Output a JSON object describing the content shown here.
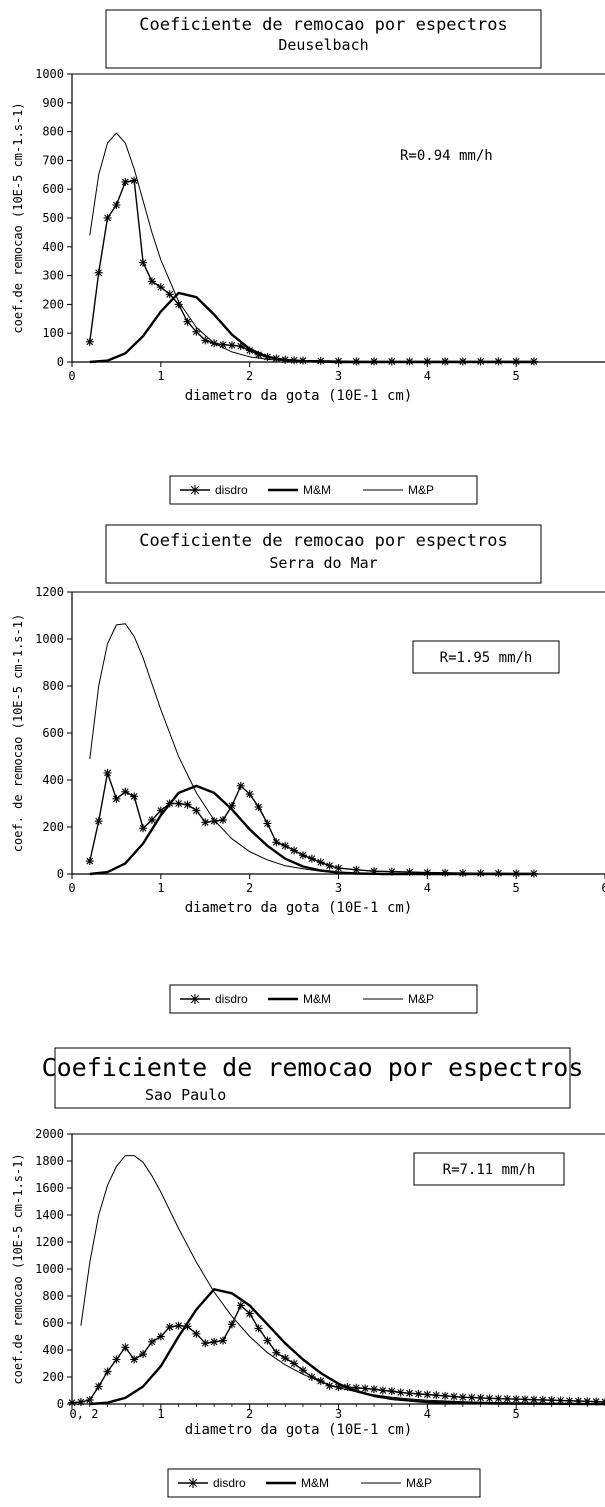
{
  "chart_data": [
    {
      "type": "line",
      "title": "Coeficiente de remocao por espectros",
      "subtitle": "Deuselbach",
      "xlabel": "diametro da gota (10E-1 cm)",
      "ylabel": "coef.de remocao (10E-5 cm-1.s-1)",
      "xlim": [
        0,
        6
      ],
      "ylim": [
        0,
        1000
      ],
      "xticks": [
        "0",
        "1",
        "2",
        "3",
        "4",
        "5"
      ],
      "yticks": [
        "0",
        "100",
        "200",
        "300",
        "400",
        "500",
        "600",
        "700",
        "800",
        "900",
        "1000"
      ],
      "annotation": "R=0.94 mm/h",
      "annotation_boxed": false,
      "legend": [
        "disdro",
        "M&M",
        "M&P"
      ],
      "series": [
        {
          "name": "disdro",
          "x": [
            0.2,
            0.3,
            0.4,
            0.5,
            0.6,
            0.7,
            0.8,
            0.9,
            1.0,
            1.1,
            1.2,
            1.3,
            1.4,
            1.5,
            1.6,
            1.7,
            1.8,
            1.9,
            2.0,
            2.1,
            2.2,
            2.3,
            2.4,
            2.5,
            2.6,
            2.8,
            3.0,
            3.2,
            3.4,
            3.6,
            3.8,
            4.0,
            4.2,
            4.4,
            4.6,
            4.8,
            5.0,
            5.2
          ],
          "y": [
            70,
            310,
            500,
            545,
            625,
            630,
            345,
            280,
            260,
            235,
            200,
            140,
            105,
            75,
            65,
            60,
            58,
            55,
            40,
            25,
            18,
            12,
            8,
            6,
            5,
            4,
            3,
            2,
            2,
            2,
            2,
            2,
            2,
            2,
            2,
            2,
            2,
            2
          ]
        },
        {
          "name": "M&M",
          "x": [
            0.2,
            0.4,
            0.6,
            0.8,
            1.0,
            1.2,
            1.4,
            1.6,
            1.8,
            2.0,
            2.2,
            2.4,
            2.6,
            2.8,
            3.0,
            3.5,
            4.0,
            4.5,
            5.0,
            5.2
          ],
          "y": [
            0,
            5,
            30,
            90,
            175,
            240,
            225,
            165,
            95,
            45,
            18,
            7,
            3,
            1,
            0,
            0,
            0,
            0,
            0,
            0
          ]
        },
        {
          "name": "M&P",
          "x": [
            0.2,
            0.3,
            0.4,
            0.5,
            0.6,
            0.7,
            0.8,
            0.9,
            1.0,
            1.2,
            1.4,
            1.6,
            1.8,
            2.0,
            2.2,
            2.4,
            2.6,
            2.8,
            3.0,
            3.5,
            4.0,
            4.5,
            5.0,
            5.2
          ],
          "y": [
            440,
            650,
            760,
            795,
            760,
            670,
            560,
            450,
            355,
            210,
            120,
            65,
            35,
            18,
            9,
            5,
            3,
            2,
            1,
            0,
            0,
            0,
            0,
            0
          ]
        }
      ]
    },
    {
      "type": "line",
      "title": "Coeficiente de remocao por espectros",
      "subtitle": "Serra do Mar",
      "xlabel": "diametro da gota (10E-1 cm)",
      "ylabel": "coef. de remocao (10E-5 cm-1.s-1)",
      "xlim": [
        0,
        6
      ],
      "ylim": [
        0,
        1200
      ],
      "xticks": [
        "0",
        "1",
        "2",
        "3",
        "4",
        "5",
        "6"
      ],
      "yticks": [
        "0",
        "200",
        "400",
        "600",
        "800",
        "1000",
        "1200"
      ],
      "annotation": "R=1.95 mm/h",
      "annotation_boxed": true,
      "legend": [
        "disdro",
        "M&M",
        "M&P"
      ],
      "series": [
        {
          "name": "disdro",
          "x": [
            0.2,
            0.3,
            0.4,
            0.5,
            0.6,
            0.7,
            0.8,
            0.9,
            1.0,
            1.1,
            1.2,
            1.3,
            1.4,
            1.5,
            1.6,
            1.7,
            1.8,
            1.9,
            2.0,
            2.1,
            2.2,
            2.3,
            2.4,
            2.5,
            2.6,
            2.7,
            2.8,
            2.9,
            3.0,
            3.2,
            3.4,
            3.6,
            3.8,
            4.0,
            4.2,
            4.4,
            4.6,
            4.8,
            5.0,
            5.2
          ],
          "y": [
            55,
            225,
            430,
            320,
            350,
            330,
            195,
            230,
            270,
            300,
            300,
            295,
            270,
            220,
            225,
            230,
            290,
            375,
            340,
            285,
            215,
            135,
            120,
            100,
            80,
            65,
            50,
            35,
            25,
            18,
            12,
            10,
            8,
            6,
            5,
            4,
            3,
            3,
            2,
            2
          ]
        },
        {
          "name": "M&M",
          "x": [
            0.2,
            0.4,
            0.6,
            0.8,
            1.0,
            1.2,
            1.4,
            1.6,
            1.8,
            2.0,
            2.2,
            2.4,
            2.6,
            2.8,
            3.0,
            3.2,
            3.5,
            4.0,
            4.5,
            5.0,
            5.2
          ],
          "y": [
            0,
            8,
            45,
            130,
            250,
            345,
            375,
            345,
            275,
            190,
            120,
            65,
            32,
            15,
            6,
            2,
            0,
            0,
            0,
            0,
            0
          ]
        },
        {
          "name": "M&P",
          "x": [
            0.2,
            0.3,
            0.4,
            0.5,
            0.6,
            0.7,
            0.8,
            0.9,
            1.0,
            1.2,
            1.4,
            1.6,
            1.8,
            2.0,
            2.2,
            2.4,
            2.6,
            2.8,
            3.0,
            3.5,
            4.0,
            4.5,
            5.0,
            5.2
          ],
          "y": [
            490,
            800,
            980,
            1060,
            1065,
            1010,
            920,
            810,
            700,
            500,
            345,
            230,
            150,
            95,
            60,
            35,
            22,
            12,
            6,
            2,
            0,
            0,
            0,
            0
          ]
        }
      ]
    },
    {
      "type": "line",
      "title": "Coeficiente de remocao por espectros",
      "subtitle": "Sao Paulo",
      "xlabel": "diametro da gota (10E-1 cm)",
      "ylabel": "coef.de remocao (10E-5 cm-1.s-1)",
      "xlim": [
        0,
        6
      ],
      "ylim": [
        0,
        2000
      ],
      "xticks": [
        "0, 2",
        "1",
        "2",
        "3",
        "4",
        "5"
      ],
      "yticks": [
        "0",
        "200",
        "400",
        "600",
        "800",
        "1000",
        "1200",
        "1400",
        "1600",
        "1800",
        "2000"
      ],
      "annotation": "R=7.11 mm/h",
      "annotation_boxed": true,
      "legend": [
        "disdro",
        "M&M",
        "M&P"
      ],
      "series": [
        {
          "name": "disdro",
          "x": [
            0.0,
            0.1,
            0.2,
            0.3,
            0.4,
            0.5,
            0.6,
            0.7,
            0.8,
            0.9,
            1.0,
            1.1,
            1.2,
            1.3,
            1.4,
            1.5,
            1.6,
            1.7,
            1.8,
            1.9,
            2.0,
            2.1,
            2.2,
            2.3,
            2.4,
            2.5,
            2.6,
            2.7,
            2.8,
            2.9,
            3.0,
            3.1,
            3.2,
            3.3,
            3.4,
            3.5,
            3.6,
            3.7,
            3.8,
            3.9,
            4.0,
            4.1,
            4.2,
            4.3,
            4.4,
            4.5,
            4.6,
            4.7,
            4.8,
            4.9,
            5.0,
            5.1,
            5.2,
            5.3,
            5.4,
            5.5,
            5.6,
            5.7,
            5.8,
            5.9,
            6.0
          ],
          "y": [
            10,
            15,
            30,
            130,
            240,
            330,
            420,
            330,
            370,
            460,
            500,
            570,
            580,
            575,
            520,
            450,
            460,
            470,
            590,
            730,
            670,
            560,
            470,
            380,
            340,
            300,
            250,
            200,
            170,
            135,
            125,
            125,
            120,
            115,
            110,
            100,
            95,
            85,
            80,
            75,
            70,
            65,
            60,
            55,
            50,
            48,
            45,
            42,
            40,
            38,
            36,
            34,
            32,
            30,
            28,
            26,
            24,
            22,
            20,
            18,
            16
          ]
        },
        {
          "name": "M&M",
          "x": [
            0.2,
            0.4,
            0.6,
            0.8,
            1.0,
            1.2,
            1.4,
            1.6,
            1.8,
            2.0,
            2.2,
            2.4,
            2.6,
            2.8,
            3.0,
            3.2,
            3.4,
            3.6,
            3.8,
            4.0,
            4.4,
            4.8,
            5.2,
            5.6,
            6.0
          ],
          "y": [
            0,
            10,
            45,
            130,
            280,
            500,
            700,
            850,
            820,
            730,
            590,
            450,
            330,
            230,
            150,
            95,
            60,
            38,
            25,
            15,
            8,
            4,
            2,
            1,
            0
          ]
        },
        {
          "name": "M&P",
          "x": [
            0.1,
            0.2,
            0.3,
            0.4,
            0.5,
            0.6,
            0.7,
            0.8,
            0.9,
            1.0,
            1.2,
            1.4,
            1.6,
            1.8,
            2.0,
            2.2,
            2.4,
            2.6,
            2.8,
            3.0,
            3.2,
            3.4,
            3.6,
            3.8,
            4.0,
            4.5,
            5.0,
            5.5,
            6.0
          ],
          "y": [
            580,
            1050,
            1400,
            1620,
            1760,
            1840,
            1840,
            1790,
            1690,
            1570,
            1300,
            1050,
            830,
            650,
            500,
            380,
            290,
            220,
            165,
            120,
            90,
            68,
            50,
            38,
            28,
            15,
            8,
            4,
            2
          ]
        }
      ]
    }
  ]
}
